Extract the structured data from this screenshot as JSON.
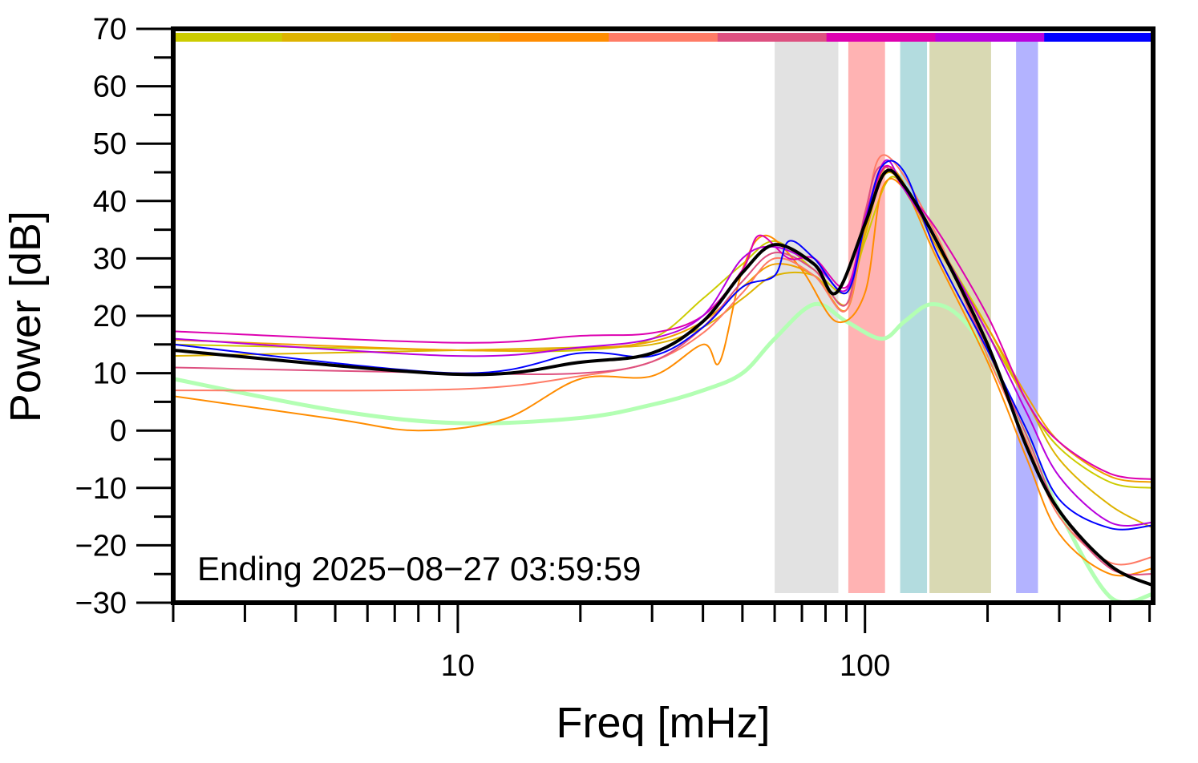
{
  "chart_data": {
    "type": "line",
    "title": "",
    "xlabel": "Freq [mHz]",
    "ylabel": "Power [dB]",
    "xscale": "log",
    "xlim": [
      2,
      510
    ],
    "ylim": [
      -30,
      70
    ],
    "yticks": [
      -30,
      -20,
      -10,
      0,
      10,
      20,
      30,
      40,
      50,
      60,
      70
    ],
    "ytick_labels": [
      "−30",
      "−20",
      "−10",
      "0",
      "10",
      "20",
      "30",
      "40",
      "50",
      "60",
      "70"
    ],
    "xticks": [
      10,
      100
    ],
    "xtick_labels": [
      "10",
      "100"
    ],
    "grid": false,
    "annotation": "Ending 2025−08−27 03:59:59",
    "top_color_bar": [
      "#cccc00",
      "#ddb300",
      "#f0a000",
      "#ff8c00",
      "#ff7b66",
      "#dd5080",
      "#dd00b0",
      "#b800dd",
      "#0000ff"
    ],
    "bands": [
      {
        "from": 60,
        "to": 86,
        "color": "#e2e2e2"
      },
      {
        "from": 91,
        "to": 112,
        "color": "#ffb3b3"
      },
      {
        "from": 122,
        "to": 142,
        "color": "#b3dcdf"
      },
      {
        "from": 144,
        "to": 204,
        "color": "#d9d9b3"
      },
      {
        "from": 235,
        "to": 266,
        "color": "#b3b3ff"
      }
    ],
    "series": [
      {
        "color": "#b3ffb3",
        "width": 5,
        "points": [
          [
            2,
            9
          ],
          [
            5,
            3.5
          ],
          [
            10,
            1.3
          ],
          [
            20,
            2.2
          ],
          [
            30,
            4.5
          ],
          [
            40,
            7
          ],
          [
            50,
            10
          ],
          [
            60,
            16
          ],
          [
            75,
            22
          ],
          [
            90,
            19
          ],
          [
            110,
            16
          ],
          [
            125,
            19
          ],
          [
            145,
            22
          ],
          [
            170,
            20
          ],
          [
            200,
            13
          ],
          [
            250,
            -1
          ],
          [
            300,
            -14
          ],
          [
            400,
            -29
          ],
          [
            510,
            -28.5
          ]
        ]
      },
      {
        "color": "#cccc00",
        "width": 2,
        "points": [
          [
            2,
            15
          ],
          [
            10,
            14
          ],
          [
            20,
            14
          ],
          [
            30,
            16
          ],
          [
            40,
            23
          ],
          [
            50,
            29
          ],
          [
            60,
            33
          ],
          [
            75,
            28
          ],
          [
            90,
            24
          ],
          [
            100,
            33
          ],
          [
            115,
            44
          ],
          [
            130,
            40
          ],
          [
            150,
            33
          ],
          [
            200,
            18
          ],
          [
            250,
            5
          ],
          [
            300,
            -3
          ],
          [
            400,
            -9
          ],
          [
            510,
            -10
          ]
        ]
      },
      {
        "color": "#ddb300",
        "width": 2,
        "points": [
          [
            2,
            13
          ],
          [
            10,
            14
          ],
          [
            20,
            14.5
          ],
          [
            30,
            15
          ],
          [
            40,
            18
          ],
          [
            50,
            23
          ],
          [
            60,
            27
          ],
          [
            75,
            27
          ],
          [
            90,
            22
          ],
          [
            100,
            34
          ],
          [
            115,
            45
          ],
          [
            150,
            33
          ],
          [
            200,
            17
          ],
          [
            250,
            5
          ],
          [
            300,
            -5
          ],
          [
            400,
            -13
          ],
          [
            510,
            -17
          ]
        ]
      },
      {
        "color": "#f0a000",
        "width": 2,
        "points": [
          [
            2,
            15.8
          ],
          [
            10,
            14
          ],
          [
            20,
            14.3
          ],
          [
            30,
            15.5
          ],
          [
            40,
            19
          ],
          [
            50,
            25
          ],
          [
            60,
            29
          ],
          [
            75,
            27
          ],
          [
            90,
            21
          ],
          [
            100,
            35
          ],
          [
            115,
            46
          ],
          [
            150,
            32
          ],
          [
            200,
            18
          ],
          [
            250,
            6
          ],
          [
            300,
            -2
          ],
          [
            400,
            -8
          ],
          [
            510,
            -9
          ]
        ]
      },
      {
        "color": "#ff8c00",
        "width": 2,
        "points": [
          [
            2,
            6
          ],
          [
            5,
            2
          ],
          [
            8,
            0
          ],
          [
            13,
            2
          ],
          [
            20,
            9
          ],
          [
            30,
            9.5
          ],
          [
            40,
            15
          ],
          [
            44,
            12
          ],
          [
            50,
            28
          ],
          [
            57,
            34
          ],
          [
            70,
            28
          ],
          [
            85,
            19
          ],
          [
            100,
            24
          ],
          [
            110,
            42
          ],
          [
            125,
            42
          ],
          [
            150,
            30
          ],
          [
            200,
            12
          ],
          [
            250,
            -5
          ],
          [
            300,
            -18
          ],
          [
            400,
            -25
          ],
          [
            510,
            -24
          ]
        ]
      },
      {
        "color": "#ff7b66",
        "width": 2,
        "points": [
          [
            2,
            7
          ],
          [
            10,
            7.2
          ],
          [
            20,
            9.5
          ],
          [
            30,
            12
          ],
          [
            40,
            17
          ],
          [
            50,
            24
          ],
          [
            60,
            30
          ],
          [
            75,
            27
          ],
          [
            90,
            21
          ],
          [
            100,
            37
          ],
          [
            112,
            48
          ],
          [
            150,
            34
          ],
          [
            200,
            13
          ],
          [
            250,
            -2
          ],
          [
            300,
            -15
          ],
          [
            400,
            -23
          ],
          [
            510,
            -22
          ]
        ]
      },
      {
        "color": "#dd5080",
        "width": 2,
        "points": [
          [
            2,
            11
          ],
          [
            10,
            10
          ],
          [
            20,
            10
          ],
          [
            30,
            12
          ],
          [
            40,
            18
          ],
          [
            50,
            26
          ],
          [
            60,
            31
          ],
          [
            75,
            28
          ],
          [
            90,
            22
          ],
          [
            100,
            38
          ],
          [
            112,
            46
          ],
          [
            150,
            33
          ],
          [
            200,
            14
          ],
          [
            250,
            -1
          ],
          [
            300,
            -14
          ],
          [
            400,
            -24
          ],
          [
            510,
            -25
          ]
        ]
      },
      {
        "color": "#dd00b0",
        "width": 2,
        "points": [
          [
            2,
            17.3
          ],
          [
            10,
            15.3
          ],
          [
            20,
            16.5
          ],
          [
            30,
            17
          ],
          [
            40,
            20
          ],
          [
            50,
            28
          ],
          [
            55,
            34
          ],
          [
            65,
            30
          ],
          [
            75,
            30
          ],
          [
            90,
            25
          ],
          [
            100,
            37
          ],
          [
            112,
            46
          ],
          [
            125,
            42
          ],
          [
            150,
            35
          ],
          [
            200,
            20
          ],
          [
            250,
            5
          ],
          [
            300,
            -2
          ],
          [
            400,
            -7.5
          ],
          [
            510,
            -8.5
          ]
        ]
      },
      {
        "color": "#b800dd",
        "width": 2,
        "points": [
          [
            2,
            16
          ],
          [
            10,
            13
          ],
          [
            20,
            14.5
          ],
          [
            30,
            16
          ],
          [
            40,
            20
          ],
          [
            50,
            30
          ],
          [
            60,
            32
          ],
          [
            75,
            29
          ],
          [
            90,
            24.5
          ],
          [
            100,
            37
          ],
          [
            112,
            47
          ],
          [
            125,
            42
          ],
          [
            150,
            33
          ],
          [
            200,
            17
          ],
          [
            250,
            3
          ],
          [
            300,
            -8
          ],
          [
            400,
            -16
          ],
          [
            510,
            -16
          ]
        ]
      },
      {
        "color": "#0000ff",
        "width": 2,
        "points": [
          [
            2,
            15
          ],
          [
            10,
            10
          ],
          [
            20,
            13.5
          ],
          [
            30,
            13
          ],
          [
            40,
            18
          ],
          [
            50,
            25
          ],
          [
            60,
            27
          ],
          [
            65,
            33
          ],
          [
            75,
            30
          ],
          [
            90,
            24
          ],
          [
            100,
            36
          ],
          [
            110,
            46
          ],
          [
            125,
            45
          ],
          [
            150,
            31
          ],
          [
            200,
            14
          ],
          [
            250,
            0
          ],
          [
            300,
            -12
          ],
          [
            400,
            -17
          ],
          [
            510,
            -16.5
          ]
        ]
      },
      {
        "color": "#000000",
        "width": 4,
        "points": [
          [
            2,
            14
          ],
          [
            10,
            9.8
          ],
          [
            20,
            11.9
          ],
          [
            30,
            13.5
          ],
          [
            40,
            19
          ],
          [
            50,
            27.5
          ],
          [
            60,
            32.4
          ],
          [
            75,
            29
          ],
          [
            85,
            24
          ],
          [
            100,
            36
          ],
          [
            112,
            45
          ],
          [
            125,
            42.6
          ],
          [
            150,
            33
          ],
          [
            200,
            15
          ],
          [
            250,
            -3
          ],
          [
            300,
            -14
          ],
          [
            400,
            -23.5
          ],
          [
            510,
            -27
          ]
        ]
      }
    ]
  }
}
